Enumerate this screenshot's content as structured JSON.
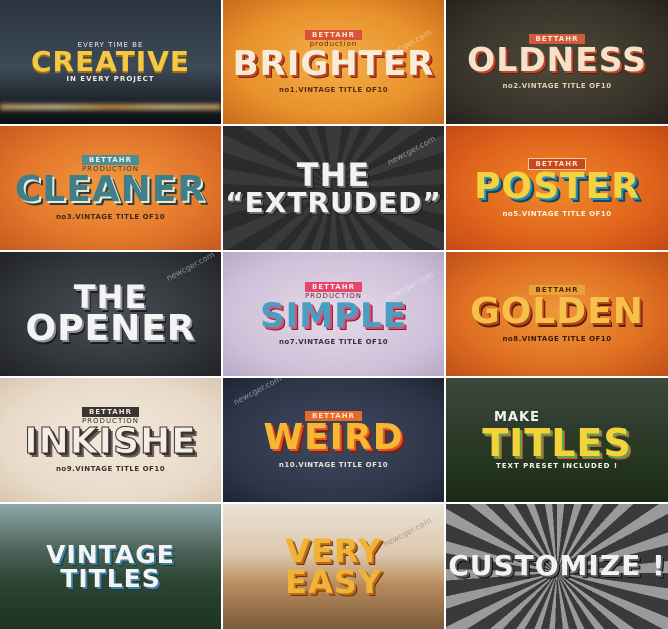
{
  "watermark": "newcger.com",
  "tiles": {
    "creative": {
      "top": "EVERY TIME BE",
      "title": "CREATIVE",
      "bottom": "IN EVERY PROJECT"
    },
    "brighter": {
      "ribbon": "BETTAHR",
      "sub": "production",
      "title": "BRIGHTER",
      "caption": "no1.VINTAGE TITLE OF10"
    },
    "oldness": {
      "ribbon": "BETTAHR",
      "title": "OLDNESS",
      "caption": "no2.VINTAGE TITLE OF10"
    },
    "cleaner": {
      "ribbon": "BETTAHR",
      "sub": "PRODUCTION",
      "title": "CLEANER",
      "caption": "no3.VINTAGE TITLE OF10"
    },
    "extruded": {
      "line1": "THE",
      "line2": "“EXTRUDED”"
    },
    "poster": {
      "ribbon": "BETTAHR",
      "title": "POSTER",
      "caption": "no5.VINTAGE TITLE OF10"
    },
    "opener": {
      "line1": "THE",
      "line2": "OPENER"
    },
    "simple": {
      "ribbon": "BETTAHR",
      "sub": "PRODUCTION",
      "title": "SIMPLE",
      "caption": "no7.VINTAGE TITLE OF10"
    },
    "golden": {
      "ribbon": "BETTAHR",
      "title": "GOLDEN",
      "caption": "no8.VINTAGE TITLE OF10"
    },
    "inkishe": {
      "ribbon": "BETTAHR",
      "sub": "PRODUCTION",
      "title": "INKISHE",
      "caption": "no9.VINTAGE TITLE OF10"
    },
    "weird": {
      "ribbon": "BETTAHR",
      "title": "WEIRD",
      "caption": "n10.VINTAGE TITLE OF10"
    },
    "titles": {
      "lead": "MAKE",
      "title": "TITLES",
      "bottom": "TEXT PRESET INCLUDED !"
    },
    "vintage": {
      "line1": "VINTAGE",
      "line2": "TITLES"
    },
    "easy": {
      "line1": "VERY",
      "line2": "EASY"
    },
    "customize": {
      "title": "CUSTOMIZE !"
    }
  }
}
